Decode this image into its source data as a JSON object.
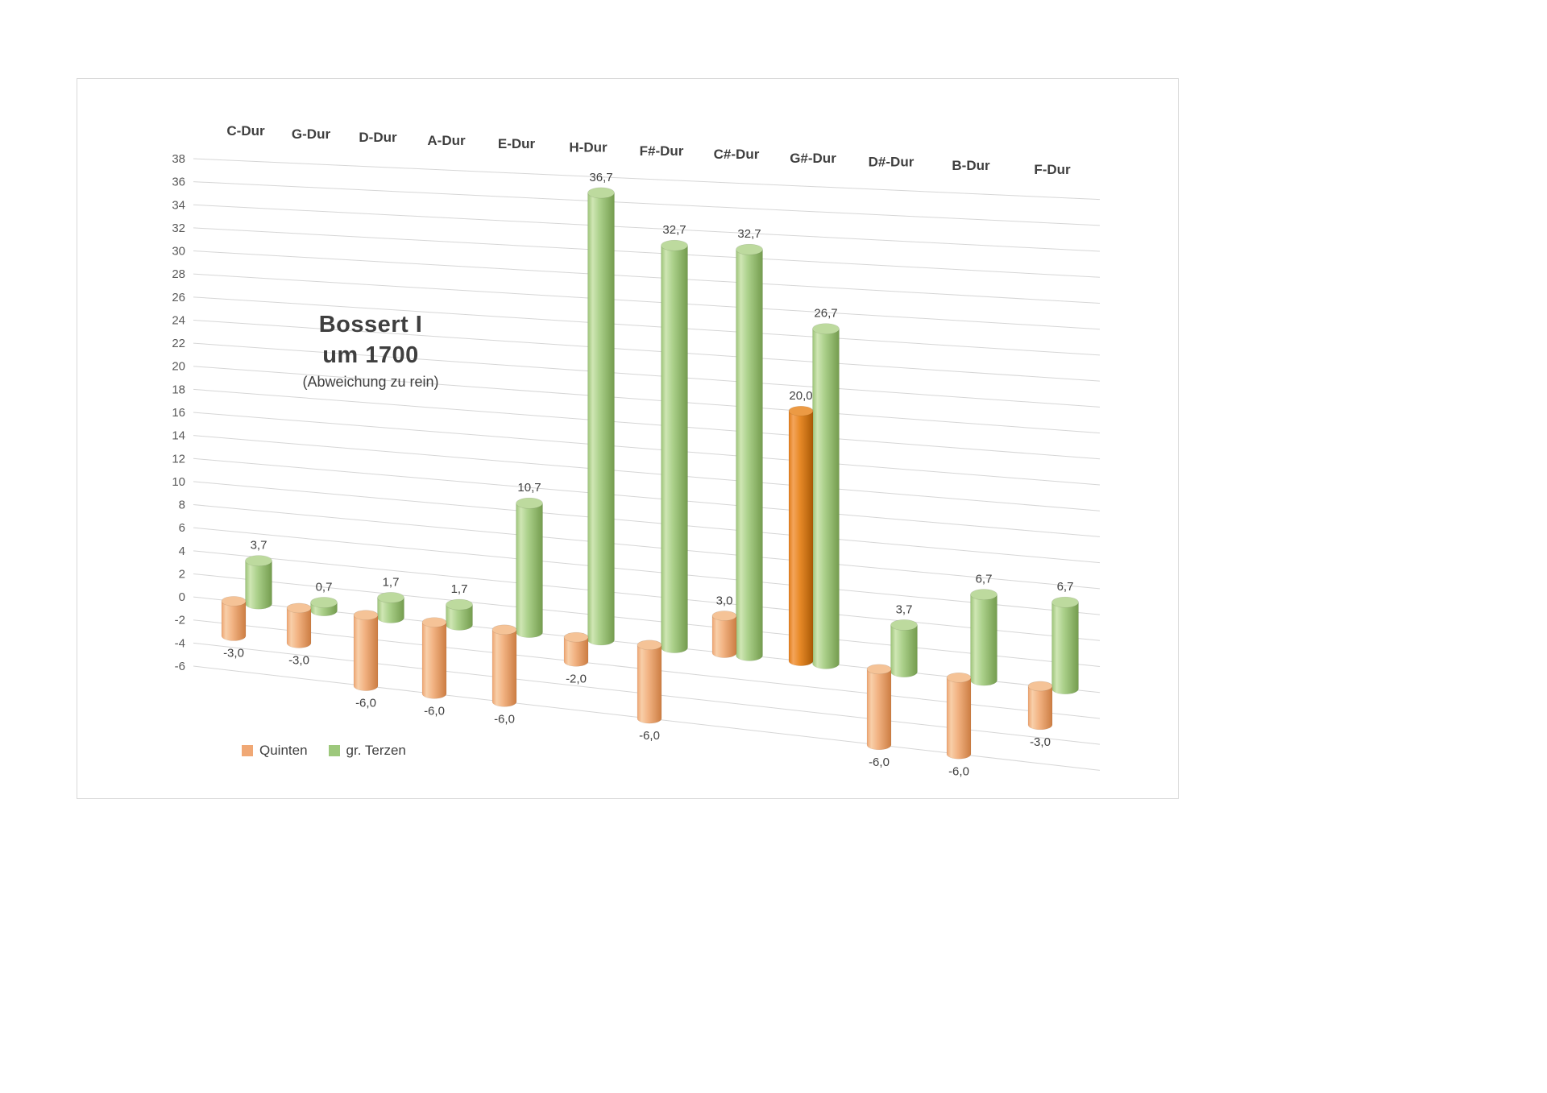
{
  "page": {
    "background": "#ffffff"
  },
  "chart": {
    "title_line1": "Bossert I",
    "title_line2": "um 1700",
    "subtitle": "(Abweichung zu rein)",
    "legend": [
      {
        "label": "Quinten",
        "color": "#f0a875"
      },
      {
        "label": "gr. Terzen",
        "color": "#9dc87c"
      }
    ]
  },
  "chart_data": {
    "type": "bar",
    "style": "3d-cylinder",
    "title": "Bossert I um 1700 (Abweichung zu rein)",
    "categories": [
      "C-Dur",
      "G-Dur",
      "D-Dur",
      "A-Dur",
      "E-Dur",
      "H-Dur",
      "F#-Dur",
      "C#-Dur",
      "G#-Dur",
      "D#-Dur",
      "B-Dur",
      "F-Dur"
    ],
    "series": [
      {
        "name": "Quinten",
        "color": "#f0a875",
        "values": [
          -3.0,
          -3.0,
          -6.0,
          -6.0,
          -6.0,
          -2.0,
          -6.0,
          3.0,
          20.0,
          -6.0,
          -6.0,
          -3.0
        ],
        "labels": [
          "-3,0",
          "-3,0",
          "-6,0",
          "-6,0",
          "-6,0",
          "-2,0",
          "-6,0",
          "3,0",
          "20,0",
          "-6,0",
          "-6,0",
          "-3,0"
        ],
        "highlight_index": 8,
        "highlight_color": "#e2700f"
      },
      {
        "name": "gr. Terzen",
        "color": "#9dc87c",
        "values": [
          3.7,
          0.7,
          1.7,
          1.7,
          10.7,
          36.7,
          32.7,
          32.7,
          26.7,
          3.7,
          6.7,
          6.7
        ],
        "labels": [
          "3,7",
          "0,7",
          "1,7",
          "1,7",
          "10,7",
          "36,7",
          "32,7",
          "32,7",
          "26,7",
          "3,7",
          "6,7",
          "6,7"
        ]
      }
    ],
    "y_axis": {
      "min": -6,
      "max": 38,
      "step": 2,
      "tick_labels": [
        "-6",
        "-4",
        "-2",
        "0",
        "2",
        "4",
        "6",
        "8",
        "10",
        "12",
        "14",
        "16",
        "18",
        "20",
        "22",
        "24",
        "26",
        "28",
        "30",
        "32",
        "34",
        "36",
        "38"
      ]
    },
    "grid": true,
    "legend_position": "bottom-left",
    "colors": {
      "grid": "#d6d6d6",
      "axis_text": "#595959",
      "category_text": "#3f3f3f",
      "value_text": "#404040"
    }
  }
}
